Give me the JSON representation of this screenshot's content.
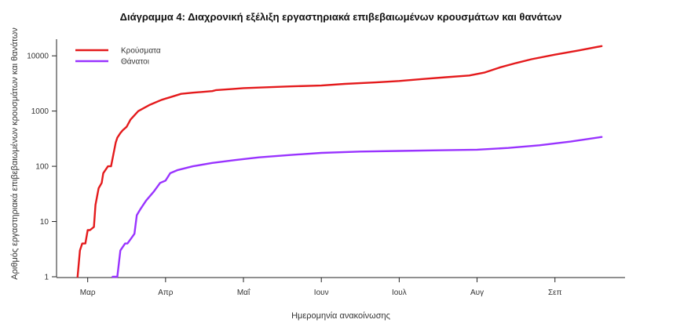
{
  "chart_data": {
    "type": "line",
    "title": "Διάγραμμα 4: Διαχρονική εξέλιξη εργαστηριακά επιβεβαιωμένων κρουσμάτων και θανάτων",
    "xlabel": "Ημερομηνία ανακοίνωσης",
    "ylabel": "Αριθμός εργαστηριακά επιβεβαιωμένων κρουσμάτων και θανάτων",
    "x_unit": "month",
    "x_ticks": [
      {
        "label": "Μαρ",
        "value": 3.0
      },
      {
        "label": "Απρ",
        "value": 4.0
      },
      {
        "label": "Μαΐ",
        "value": 5.0
      },
      {
        "label": "Ιουν",
        "value": 6.0
      },
      {
        "label": "Ιουλ",
        "value": 7.0
      },
      {
        "label": "Αυγ",
        "value": 8.0
      },
      {
        "label": "Σεπ",
        "value": 9.0
      }
    ],
    "xlim": [
      2.6,
      9.9
    ],
    "y_scale": "log",
    "ylim": [
      1,
      20000
    ],
    "y_ticks": [
      {
        "label": "1",
        "value": 1
      },
      {
        "label": "10",
        "value": 10
      },
      {
        "label": "100",
        "value": 100
      },
      {
        "label": "1000",
        "value": 1000
      },
      {
        "label": "10000",
        "value": 10000
      }
    ],
    "legend_position": "top-left",
    "grid": false,
    "series": [
      {
        "name": "Κρούσματα",
        "color": "#e41a1c",
        "x": [
          2.87,
          2.9,
          2.93,
          2.97,
          3.0,
          3.03,
          3.08,
          3.1,
          3.14,
          3.18,
          3.2,
          3.26,
          3.3,
          3.36,
          3.38,
          3.42,
          3.45,
          3.5,
          3.55,
          3.65,
          3.8,
          3.95,
          4.07,
          4.2,
          4.35,
          4.6,
          4.65,
          4.85,
          5.0,
          5.3,
          5.6,
          6.0,
          6.3,
          6.7,
          7.0,
          7.3,
          7.6,
          7.9,
          8.1,
          8.3,
          8.5,
          8.7,
          9.0,
          9.3,
          9.6
        ],
        "y": [
          1,
          3,
          4,
          4,
          7,
          7,
          8,
          20,
          40,
          50,
          75,
          100,
          100,
          270,
          330,
          400,
          450,
          520,
          700,
          1000,
          1300,
          1600,
          1800,
          2050,
          2150,
          2300,
          2400,
          2500,
          2600,
          2700,
          2800,
          2900,
          3100,
          3300,
          3500,
          3800,
          4100,
          4400,
          5000,
          6200,
          7400,
          8700,
          10500,
          12500,
          15000
        ]
      },
      {
        "name": "Θάνατοι",
        "color": "#9933ff",
        "x": [
          3.32,
          3.38,
          3.42,
          3.48,
          3.51,
          3.56,
          3.6,
          3.63,
          3.68,
          3.75,
          3.85,
          3.93,
          4.0,
          4.06,
          4.15,
          4.35,
          4.6,
          4.9,
          5.2,
          5.6,
          6.0,
          6.5,
          7.0,
          7.5,
          8.0,
          8.4,
          8.8,
          9.2,
          9.6
        ],
        "y": [
          1,
          1,
          3,
          4,
          4,
          5,
          6,
          13,
          17,
          24,
          35,
          50,
          55,
          75,
          85,
          100,
          115,
          130,
          145,
          160,
          175,
          185,
          190,
          195,
          200,
          215,
          240,
          280,
          340
        ]
      }
    ]
  }
}
